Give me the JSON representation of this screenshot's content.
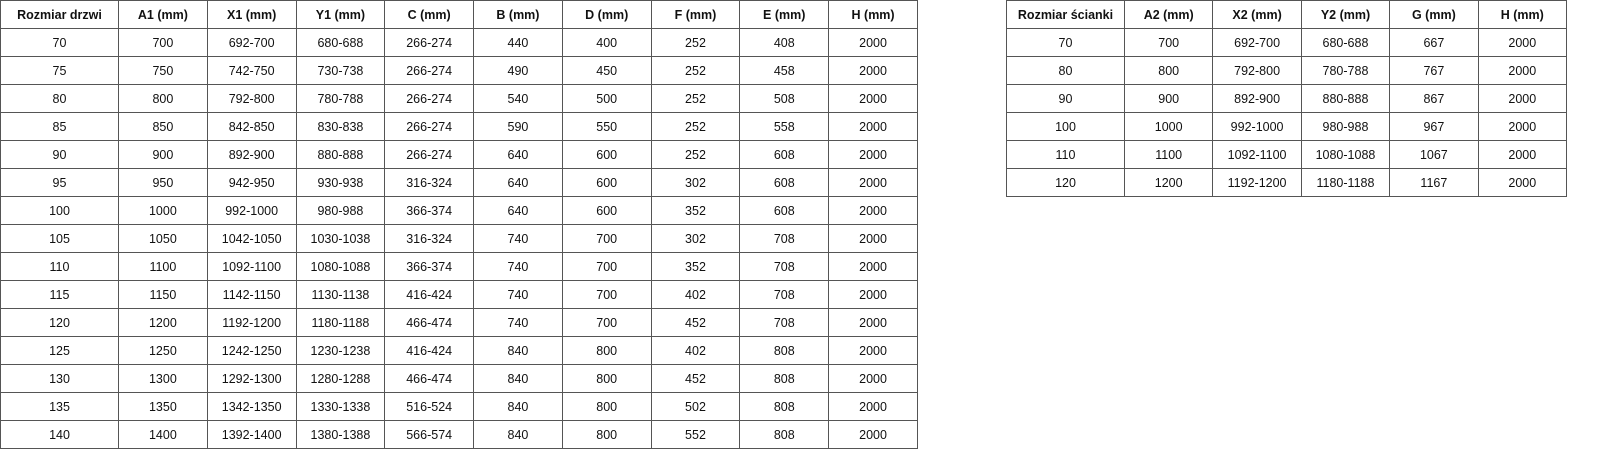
{
  "doors_table": {
    "headers": [
      "Rozmiar drzwi",
      "A1 (mm)",
      "X1 (mm)",
      "Y1 (mm)",
      "C (mm)",
      "B (mm)",
      "D (mm)",
      "F (mm)",
      "E (mm)",
      "H (mm)"
    ],
    "rows": [
      [
        "70",
        "700",
        "692-700",
        "680-688",
        "266-274",
        "440",
        "400",
        "252",
        "408",
        "2000"
      ],
      [
        "75",
        "750",
        "742-750",
        "730-738",
        "266-274",
        "490",
        "450",
        "252",
        "458",
        "2000"
      ],
      [
        "80",
        "800",
        "792-800",
        "780-788",
        "266-274",
        "540",
        "500",
        "252",
        "508",
        "2000"
      ],
      [
        "85",
        "850",
        "842-850",
        "830-838",
        "266-274",
        "590",
        "550",
        "252",
        "558",
        "2000"
      ],
      [
        "90",
        "900",
        "892-900",
        "880-888",
        "266-274",
        "640",
        "600",
        "252",
        "608",
        "2000"
      ],
      [
        "95",
        "950",
        "942-950",
        "930-938",
        "316-324",
        "640",
        "600",
        "302",
        "608",
        "2000"
      ],
      [
        "100",
        "1000",
        "992-1000",
        "980-988",
        "366-374",
        "640",
        "600",
        "352",
        "608",
        "2000"
      ],
      [
        "105",
        "1050",
        "1042-1050",
        "1030-1038",
        "316-324",
        "740",
        "700",
        "302",
        "708",
        "2000"
      ],
      [
        "110",
        "1100",
        "1092-1100",
        "1080-1088",
        "366-374",
        "740",
        "700",
        "352",
        "708",
        "2000"
      ],
      [
        "115",
        "1150",
        "1142-1150",
        "1130-1138",
        "416-424",
        "740",
        "700",
        "402",
        "708",
        "2000"
      ],
      [
        "120",
        "1200",
        "1192-1200",
        "1180-1188",
        "466-474",
        "740",
        "700",
        "452",
        "708",
        "2000"
      ],
      [
        "125",
        "1250",
        "1242-1250",
        "1230-1238",
        "416-424",
        "840",
        "800",
        "402",
        "808",
        "2000"
      ],
      [
        "130",
        "1300",
        "1292-1300",
        "1280-1288",
        "466-474",
        "840",
        "800",
        "452",
        "808",
        "2000"
      ],
      [
        "135",
        "1350",
        "1342-1350",
        "1330-1338",
        "516-524",
        "840",
        "800",
        "502",
        "808",
        "2000"
      ],
      [
        "140",
        "1400",
        "1392-1400",
        "1380-1388",
        "566-574",
        "840",
        "800",
        "552",
        "808",
        "2000"
      ]
    ]
  },
  "wall_table": {
    "headers": [
      "Rozmiar ścianki",
      "A2 (mm)",
      "X2 (mm)",
      "Y2 (mm)",
      "G (mm)",
      "H (mm)"
    ],
    "rows": [
      [
        "70",
        "700",
        "692-700",
        "680-688",
        "667",
        "2000"
      ],
      [
        "80",
        "800",
        "792-800",
        "780-788",
        "767",
        "2000"
      ],
      [
        "90",
        "900",
        "892-900",
        "880-888",
        "867",
        "2000"
      ],
      [
        "100",
        "1000",
        "992-1000",
        "980-988",
        "967",
        "2000"
      ],
      [
        "110",
        "1100",
        "1092-1100",
        "1080-1088",
        "1067",
        "2000"
      ],
      [
        "120",
        "1200",
        "1192-1200",
        "1180-1188",
        "1167",
        "2000"
      ]
    ]
  }
}
